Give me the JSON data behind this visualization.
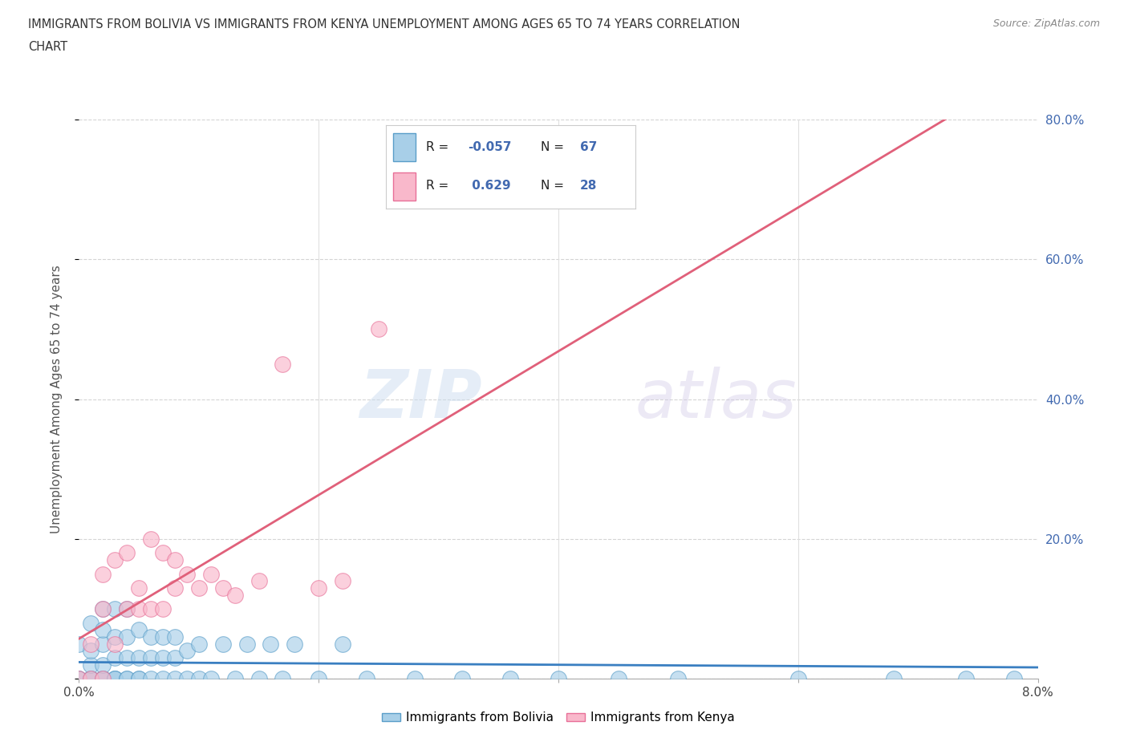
{
  "title_line1": "IMMIGRANTS FROM BOLIVIA VS IMMIGRANTS FROM KENYA UNEMPLOYMENT AMONG AGES 65 TO 74 YEARS CORRELATION",
  "title_line2": "CHART",
  "source": "Source: ZipAtlas.com",
  "ylabel": "Unemployment Among Ages 65 to 74 years",
  "x_min": 0.0,
  "x_max": 0.08,
  "y_min": 0.0,
  "y_max": 0.8,
  "bolivia_color": "#a8cfe8",
  "kenya_color": "#f9b8cb",
  "bolivia_edge_color": "#5a9ec9",
  "kenya_edge_color": "#e87098",
  "trend_bolivia_color": "#3a7fc1",
  "trend_kenya_color": "#e0607a",
  "R_bolivia": -0.057,
  "N_bolivia": 67,
  "R_kenya": 0.629,
  "N_kenya": 28,
  "legend_label_bolivia": "Immigrants from Bolivia",
  "legend_label_kenya": "Immigrants from Kenya",
  "watermark_zip": "ZIP",
  "watermark_atlas": "atlas",
  "legend_text_color": "#4169b0",
  "bolivia_x": [
    0.0,
    0.0,
    0.0,
    0.001,
    0.001,
    0.001,
    0.001,
    0.001,
    0.001,
    0.001,
    0.002,
    0.002,
    0.002,
    0.002,
    0.002,
    0.002,
    0.002,
    0.002,
    0.003,
    0.003,
    0.003,
    0.003,
    0.003,
    0.003,
    0.004,
    0.004,
    0.004,
    0.004,
    0.004,
    0.005,
    0.005,
    0.005,
    0.005,
    0.006,
    0.006,
    0.006,
    0.007,
    0.007,
    0.007,
    0.008,
    0.008,
    0.008,
    0.009,
    0.009,
    0.01,
    0.01,
    0.011,
    0.012,
    0.013,
    0.014,
    0.015,
    0.016,
    0.017,
    0.018,
    0.02,
    0.022,
    0.024,
    0.028,
    0.032,
    0.036,
    0.04,
    0.045,
    0.05,
    0.06,
    0.068,
    0.074,
    0.078
  ],
  "bolivia_y": [
    0.0,
    0.0,
    0.05,
    0.0,
    0.0,
    0.0,
    0.0,
    0.02,
    0.04,
    0.08,
    0.0,
    0.0,
    0.0,
    0.0,
    0.02,
    0.05,
    0.07,
    0.1,
    0.0,
    0.0,
    0.0,
    0.03,
    0.06,
    0.1,
    0.0,
    0.0,
    0.03,
    0.06,
    0.1,
    0.0,
    0.0,
    0.03,
    0.07,
    0.0,
    0.03,
    0.06,
    0.0,
    0.03,
    0.06,
    0.0,
    0.03,
    0.06,
    0.0,
    0.04,
    0.0,
    0.05,
    0.0,
    0.05,
    0.0,
    0.05,
    0.0,
    0.05,
    0.0,
    0.05,
    0.0,
    0.05,
    0.0,
    0.0,
    0.0,
    0.0,
    0.0,
    0.0,
    0.0,
    0.0,
    0.0,
    0.0,
    0.0
  ],
  "kenya_x": [
    0.0,
    0.001,
    0.001,
    0.002,
    0.002,
    0.002,
    0.003,
    0.003,
    0.004,
    0.004,
    0.005,
    0.005,
    0.006,
    0.006,
    0.007,
    0.007,
    0.008,
    0.008,
    0.009,
    0.01,
    0.011,
    0.012,
    0.013,
    0.015,
    0.017,
    0.02,
    0.022,
    0.025
  ],
  "kenya_y": [
    0.0,
    0.0,
    0.05,
    0.0,
    0.1,
    0.15,
    0.05,
    0.17,
    0.1,
    0.18,
    0.1,
    0.13,
    0.1,
    0.2,
    0.1,
    0.18,
    0.13,
    0.17,
    0.15,
    0.13,
    0.15,
    0.13,
    0.12,
    0.14,
    0.45,
    0.13,
    0.14,
    0.5
  ]
}
